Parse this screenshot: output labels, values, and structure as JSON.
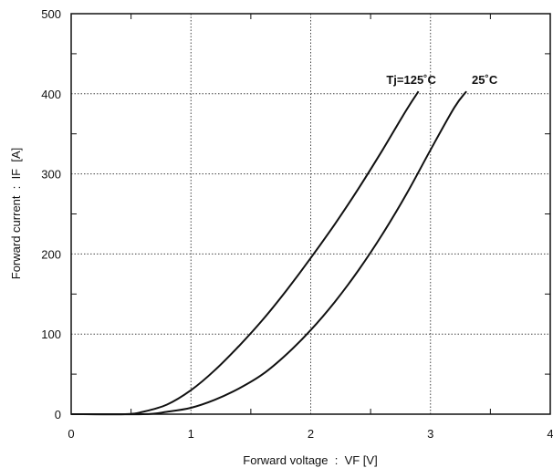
{
  "chart_data": {
    "type": "line",
    "xlabel": "Forward voltage  :  VF [V]",
    "ylabel": "Forward current  :  IF  [A]",
    "xlim": [
      0,
      4
    ],
    "ylim": [
      0,
      500
    ],
    "x_ticks": [
      "0",
      "1",
      "2",
      "3",
      "4"
    ],
    "y_ticks": [
      "0",
      "100",
      "200",
      "300",
      "400",
      "500"
    ],
    "grid": true,
    "series": [
      {
        "name": "Tj=125˚C",
        "x": [
          0.45,
          0.6,
          0.8,
          1.0,
          1.2,
          1.4,
          1.6,
          1.8,
          2.0,
          2.2,
          2.4,
          2.6,
          2.8,
          2.9
        ],
        "y": [
          0,
          3,
          12,
          30,
          55,
          85,
          118,
          155,
          195,
          237,
          282,
          330,
          380,
          403
        ]
      },
      {
        "name": "25˚C",
        "x": [
          0.6,
          0.8,
          1.0,
          1.2,
          1.4,
          1.6,
          1.8,
          2.0,
          2.2,
          2.4,
          2.6,
          2.8,
          3.0,
          3.2,
          3.3
        ],
        "y": [
          0,
          3,
          8,
          18,
          32,
          50,
          75,
          105,
          140,
          180,
          225,
          275,
          330,
          383,
          403
        ]
      }
    ]
  }
}
